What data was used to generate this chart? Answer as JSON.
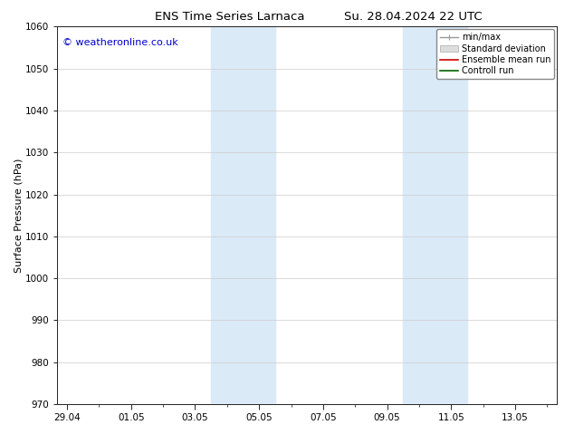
{
  "title_left": "ENS Time Series Larnaca",
  "title_right": "Su. 28.04.2024 22 UTC",
  "ylabel": "Surface Pressure (hPa)",
  "ylim": [
    970,
    1060
  ],
  "yticks": [
    970,
    980,
    990,
    1000,
    1010,
    1020,
    1030,
    1040,
    1050,
    1060
  ],
  "xtick_labels": [
    "29.04",
    "01.05",
    "03.05",
    "05.05",
    "07.05",
    "09.05",
    "11.05",
    "13.05"
  ],
  "xtick_positions": [
    0,
    2,
    4,
    6,
    8,
    10,
    12,
    14
  ],
  "xmin": -0.3,
  "xmax": 15.3,
  "shaded_regions": [
    {
      "xmin": 4.5,
      "xmax": 6.5
    },
    {
      "xmin": 10.5,
      "xmax": 12.5
    }
  ],
  "shade_color": "#daeaf7",
  "watermark": "© weatheronline.co.uk",
  "watermark_color": "#0000cc",
  "legend_items": [
    {
      "label": "min/max",
      "color": "#999999",
      "linestyle": "-",
      "linewidth": 1
    },
    {
      "label": "Standard deviation",
      "color": "#cccccc",
      "linestyle": "-",
      "linewidth": 6
    },
    {
      "label": "Ensemble mean run",
      "color": "#cc0000",
      "linestyle": "-",
      "linewidth": 1.2
    },
    {
      "label": "Controll run",
      "color": "#006600",
      "linestyle": "-",
      "linewidth": 1.2
    }
  ],
  "background_color": "#ffffff",
  "plot_bg_color": "#ffffff",
  "grid_color": "#cccccc",
  "title_fontsize": 9.5,
  "tick_fontsize": 7.5,
  "ylabel_fontsize": 8,
  "legend_fontsize": 7,
  "watermark_fontsize": 8
}
